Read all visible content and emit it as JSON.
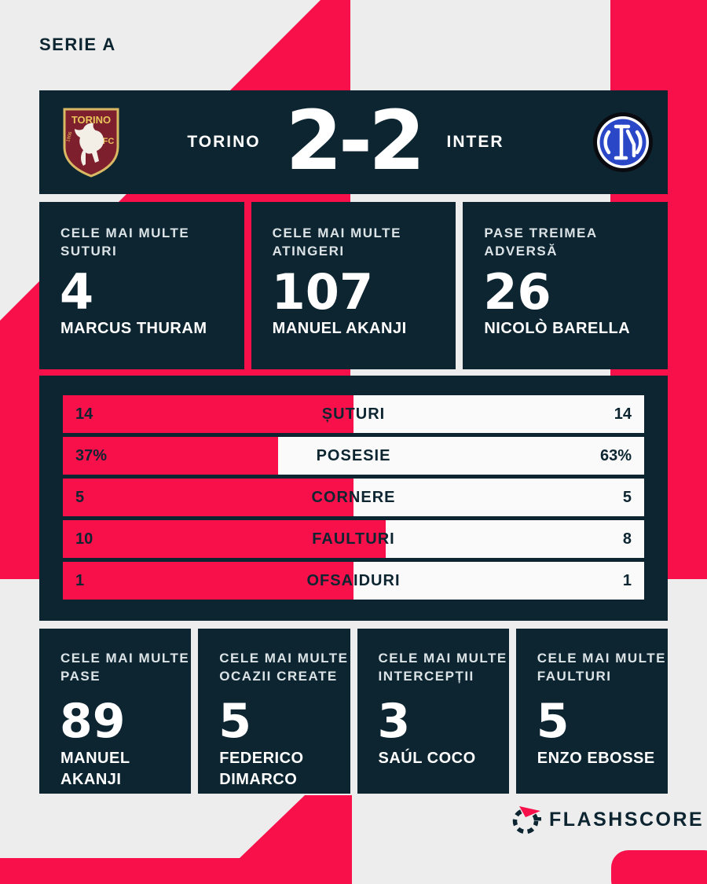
{
  "league": "SERIE A",
  "match": {
    "home": "TORINO",
    "away": "INTER",
    "score": "2-2"
  },
  "top_cards": [
    {
      "label": "CELE MAI MULTE\nSUTURI",
      "value": "4",
      "player": "MARCUS THURAM"
    },
    {
      "label": "CELE MAI MULTE\nATINGERI",
      "value": "107",
      "player": "MANUEL AKANJI"
    },
    {
      "label": "PASE TREIMEA\nADVERSĂ",
      "value": "26",
      "player": "NICOLÒ BARELLA"
    }
  ],
  "stat_bars": [
    {
      "label": "ȘUTURI",
      "home": "14",
      "away": "14",
      "home_fill_pct": 50
    },
    {
      "label": "POSESIE",
      "home": "37%",
      "away": "63%",
      "home_fill_pct": 37
    },
    {
      "label": "CORNERE",
      "home": "5",
      "away": "5",
      "home_fill_pct": 50
    },
    {
      "label": "FAULTURI",
      "home": "10",
      "away": "8",
      "home_fill_pct": 55.6
    },
    {
      "label": "OFSAIDURI",
      "home": "1",
      "away": "1",
      "home_fill_pct": 50
    }
  ],
  "bottom_cards": [
    {
      "label": "CELE MAI MULTE\nPASE",
      "value": "89",
      "player": "MANUEL AKANJI"
    },
    {
      "label": "CELE MAI MULTE\nOCAZII CREATE",
      "value": "5",
      "player": "FEDERICO\nDIMARCO"
    },
    {
      "label": "CELE MAI MULTE\nINTERCEPȚII",
      "value": "3",
      "player": "SAÚL COCO"
    },
    {
      "label": "CELE MAI MULTE\nFAULTURI",
      "value": "5",
      "player": "ENZO EBOSSE"
    }
  ],
  "footer": {
    "brand": "FLASHSCORE"
  },
  "colors": {
    "accent_red": "#F8104B",
    "dark_navy": "#0C2531",
    "bar_white": "#FAFAFA",
    "background": "#EDEDED",
    "torino_maroon": "#7E1F2D",
    "torino_gold": "#E9C55B",
    "inter_blue": "#2A47C8"
  },
  "chart_data": {
    "type": "bar",
    "title": "Torino 2-2 Inter — Serie A match statistics",
    "categories": [
      "ȘUTURI",
      "POSESIE",
      "CORNERE",
      "FAULTURI",
      "OFSAIDURI"
    ],
    "series": [
      {
        "name": "TORINO",
        "values": [
          14,
          37,
          5,
          10,
          1
        ]
      },
      {
        "name": "INTER",
        "values": [
          14,
          63,
          5,
          8,
          1
        ]
      }
    ],
    "notes": "POSESIE values are percentages (37% vs 63%); bars show home share in red from the left, away share in white.",
    "legend_position": "none",
    "grid": false
  }
}
